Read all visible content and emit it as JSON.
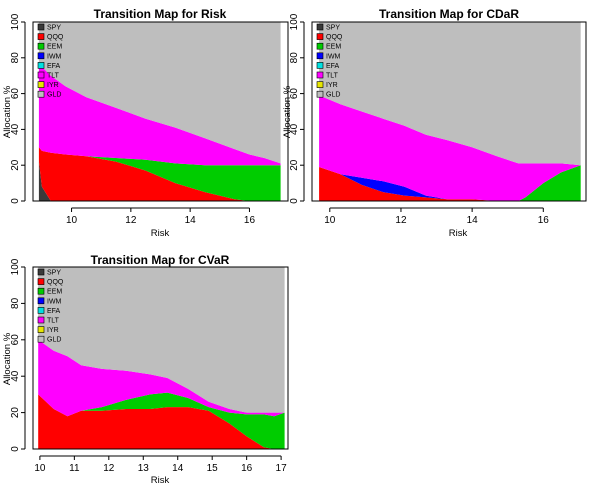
{
  "assets": [
    "SPY",
    "QQQ",
    "EEM",
    "IWM",
    "EFA",
    "TLT",
    "IYR",
    "GLD"
  ],
  "colors": {
    "SPY": "#3a3a3a",
    "QQQ": "#ff0000",
    "EEM": "#00cc00",
    "IWM": "#0000ff",
    "EFA": "#00e0e0",
    "TLT": "#ff00ff",
    "IYR": "#e6e600",
    "GLD": "#bebebe"
  },
  "chart_data": [
    {
      "type": "area",
      "title": "Transition Map for Risk",
      "xlabel": "Risk",
      "ylabel": "Allocation %",
      "xlim": [
        8.7,
        17.3
      ],
      "ylim": [
        0,
        100
      ],
      "xticks": [
        10,
        12,
        14,
        16
      ],
      "yticks": [
        0,
        20,
        40,
        60,
        80,
        100
      ],
      "x": [
        8.9,
        9.0,
        9.3,
        9.8,
        10.5,
        11.5,
        12.5,
        13.5,
        14.5,
        15.5,
        16.0,
        16.5,
        17.05
      ],
      "series": [
        {
          "name": "SPY",
          "values": [
            22,
            8,
            0,
            0,
            0,
            0,
            0,
            0,
            0,
            0,
            0,
            0,
            0
          ]
        },
        {
          "name": "QQQ",
          "values": [
            8,
            20,
            27,
            26,
            25,
            22,
            17,
            10,
            5,
            1,
            0,
            0,
            0
          ]
        },
        {
          "name": "EEM",
          "values": [
            0,
            0,
            0,
            0,
            0,
            2,
            6,
            11,
            15,
            19,
            20,
            20,
            20
          ]
        },
        {
          "name": "IWM",
          "values": [
            0,
            0,
            0,
            0,
            0,
            0,
            0,
            0,
            0,
            0,
            0,
            0,
            0
          ]
        },
        {
          "name": "EFA",
          "values": [
            0,
            0,
            0,
            0,
            0,
            0,
            0,
            0,
            0,
            0,
            0,
            0,
            0
          ]
        },
        {
          "name": "TLT",
          "values": [
            44,
            47,
            43,
            38,
            33,
            28,
            23,
            20,
            15,
            9,
            6,
            4,
            1
          ]
        },
        {
          "name": "IYR",
          "values": [
            0,
            0,
            0,
            0,
            0,
            0,
            0,
            0,
            0,
            0,
            0,
            0,
            0
          ]
        },
        {
          "name": "GLD",
          "values": [
            26,
            25,
            30,
            36,
            42,
            48,
            54,
            59,
            65,
            71,
            74,
            76,
            79
          ]
        }
      ]
    },
    {
      "type": "area",
      "title": "Transition Map for CDaR",
      "xlabel": "Risk",
      "ylabel": "Allocation %",
      "xlim": [
        9.5,
        17.2
      ],
      "ylim": [
        0,
        100
      ],
      "xticks": [
        10,
        12,
        14,
        16
      ],
      "yticks": [
        0,
        20,
        40,
        60,
        80,
        100
      ],
      "x": [
        9.7,
        10.3,
        10.9,
        11.5,
        12.1,
        12.7,
        13.3,
        14.0,
        14.7,
        15.3,
        15.5,
        16.0,
        16.5,
        17.05
      ],
      "series": [
        {
          "name": "SPY",
          "values": [
            0,
            0,
            0,
            0,
            0,
            0,
            0,
            0,
            0,
            0,
            0,
            0,
            0,
            0
          ]
        },
        {
          "name": "QQQ",
          "values": [
            19,
            15,
            9,
            5,
            3,
            2,
            1,
            1,
            0,
            0,
            0,
            0,
            0,
            0
          ]
        },
        {
          "name": "EEM",
          "values": [
            0,
            0,
            0,
            0,
            0,
            0,
            0,
            0,
            0,
            0,
            2,
            10,
            16,
            20
          ]
        },
        {
          "name": "IWM",
          "values": [
            0,
            0,
            4,
            6,
            5,
            1,
            0,
            0,
            0,
            0,
            0,
            0,
            0,
            0
          ]
        },
        {
          "name": "EFA",
          "values": [
            0,
            0,
            0,
            0,
            0,
            0,
            0,
            0,
            0,
            0,
            0,
            0,
            0,
            0
          ]
        },
        {
          "name": "TLT",
          "values": [
            40,
            39,
            37,
            35,
            34,
            34,
            33,
            29,
            25,
            21,
            19,
            11,
            5,
            0
          ]
        },
        {
          "name": "IYR",
          "values": [
            0,
            0,
            0,
            0,
            0,
            0,
            0,
            0,
            0,
            0,
            0,
            0,
            0,
            0
          ]
        },
        {
          "name": "GLD",
          "values": [
            41,
            46,
            50,
            54,
            58,
            63,
            66,
            70,
            75,
            79,
            79,
            79,
            79,
            80
          ]
        }
      ]
    },
    {
      "type": "area",
      "title": "Transition Map for CVaR",
      "xlabel": "Risk",
      "ylabel": "Allocation %",
      "xlim": [
        9.8,
        17.2
      ],
      "ylim": [
        0,
        100
      ],
      "xticks": [
        10,
        11,
        12,
        13,
        14,
        15,
        16,
        17
      ],
      "yticks": [
        0,
        20,
        40,
        60,
        80,
        100
      ],
      "x": [
        9.95,
        10.4,
        10.8,
        11.2,
        11.8,
        12.5,
        13.2,
        13.7,
        14.3,
        14.9,
        15.5,
        16.0,
        16.5,
        16.8,
        17.1
      ],
      "series": [
        {
          "name": "SPY",
          "values": [
            0,
            0,
            0,
            0,
            0,
            0,
            0,
            0,
            0,
            0,
            0,
            0,
            0,
            0,
            0
          ]
        },
        {
          "name": "QQQ",
          "values": [
            30,
            22,
            18,
            21,
            21,
            22,
            22,
            23,
            23,
            21,
            14,
            7,
            1,
            0,
            0
          ]
        },
        {
          "name": "EEM",
          "values": [
            0,
            0,
            0,
            0,
            2,
            5,
            8,
            8,
            5,
            2,
            6,
            12,
            18,
            18,
            20
          ]
        },
        {
          "name": "IWM",
          "values": [
            0,
            0,
            0,
            0,
            0,
            0,
            0,
            0,
            0,
            0,
            0,
            0,
            0,
            0,
            0
          ]
        },
        {
          "name": "EFA",
          "values": [
            0,
            0,
            0,
            0,
            0,
            0,
            0,
            0,
            0,
            0,
            0,
            0,
            0,
            0,
            0
          ]
        },
        {
          "name": "TLT",
          "values": [
            30,
            32,
            33,
            25,
            21,
            16,
            11,
            8,
            5,
            3,
            2,
            1,
            1,
            2,
            0
          ]
        },
        {
          "name": "IYR",
          "values": [
            0,
            0,
            0,
            0,
            0,
            0,
            0,
            0,
            0,
            0,
            0,
            0,
            0,
            0,
            0
          ]
        },
        {
          "name": "GLD",
          "values": [
            40,
            46,
            49,
            54,
            56,
            57,
            59,
            61,
            67,
            74,
            78,
            80,
            80,
            80,
            80
          ]
        }
      ]
    }
  ]
}
